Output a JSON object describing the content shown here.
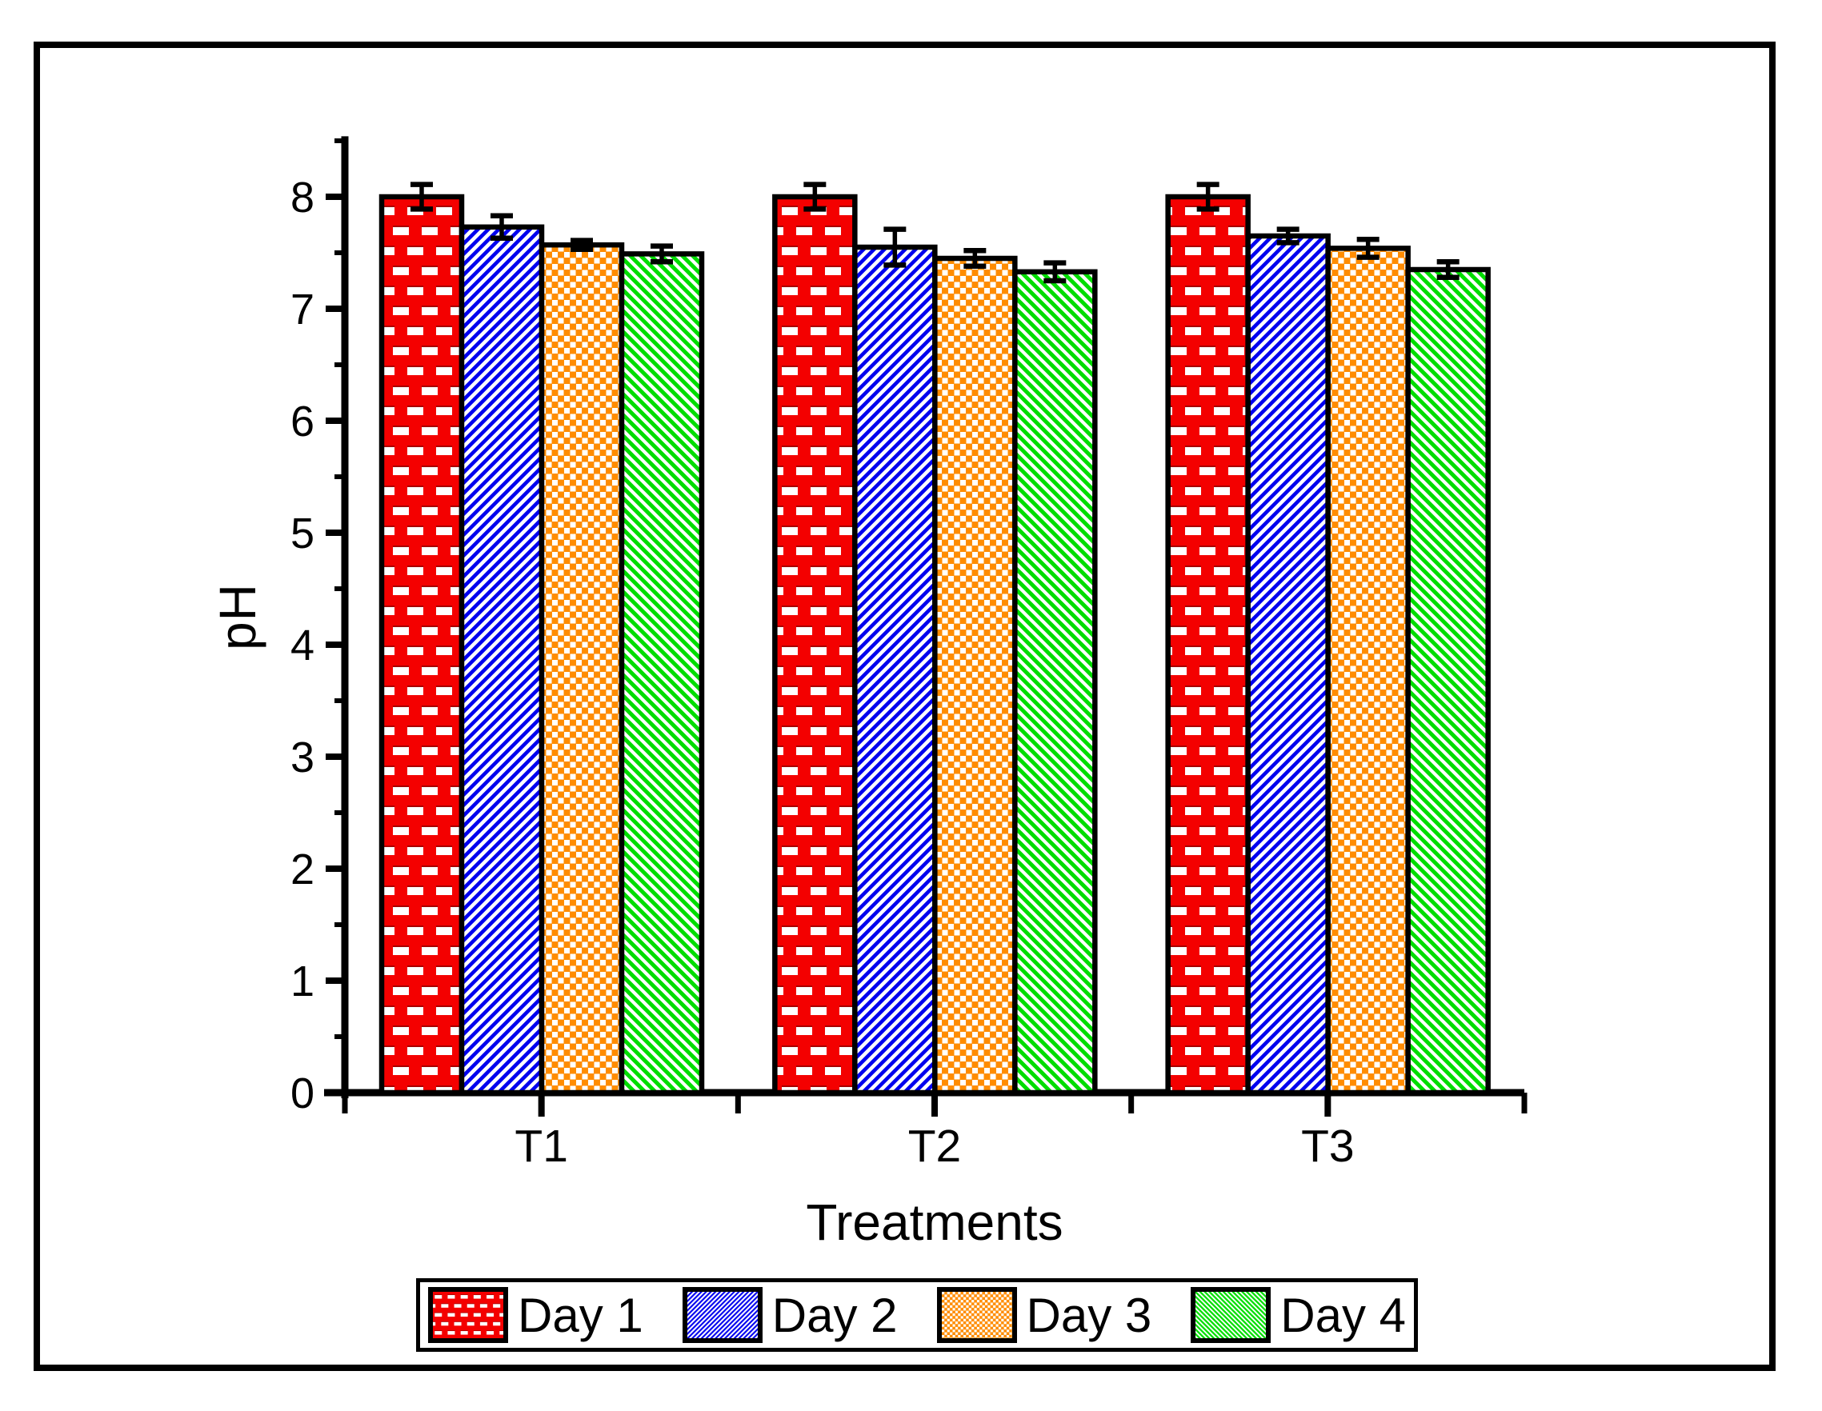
{
  "figure": {
    "background": "#ffffff",
    "frame_color": "#000000"
  },
  "chart_data": {
    "type": "bar",
    "title": "",
    "xlabel": "Treatments",
    "ylabel": "pH",
    "categories": [
      "T1",
      "T2",
      "T3"
    ],
    "series": [
      {
        "name": "Day 1",
        "values": [
          8.0,
          8.0,
          8.0
        ],
        "errors": [
          0.11,
          0.11,
          0.11
        ],
        "color": "#f40000",
        "pattern": "brick"
      },
      {
        "name": "Day 2",
        "values": [
          7.73,
          7.55,
          7.65
        ],
        "errors": [
          0.1,
          0.16,
          0.06
        ],
        "color": "#0000ee",
        "pattern": "diag-up"
      },
      {
        "name": "Day 3",
        "values": [
          7.57,
          7.45,
          7.54
        ],
        "errors": [
          0.04,
          0.07,
          0.08
        ],
        "color": "#ff8c00",
        "pattern": "checker"
      },
      {
        "name": "Day 4",
        "values": [
          7.49,
          7.33,
          7.35
        ],
        "errors": [
          0.07,
          0.08,
          0.07
        ],
        "color": "#00dd00",
        "pattern": "diag-down"
      }
    ],
    "ylim": [
      0,
      8.54
    ],
    "y_ticks": [
      0,
      1,
      2,
      3,
      4,
      5,
      6,
      7,
      8
    ],
    "y_minor_step": 0.5,
    "grid": false,
    "legend_position": "bottom",
    "error_bars": true,
    "axis_color": "#000000"
  }
}
